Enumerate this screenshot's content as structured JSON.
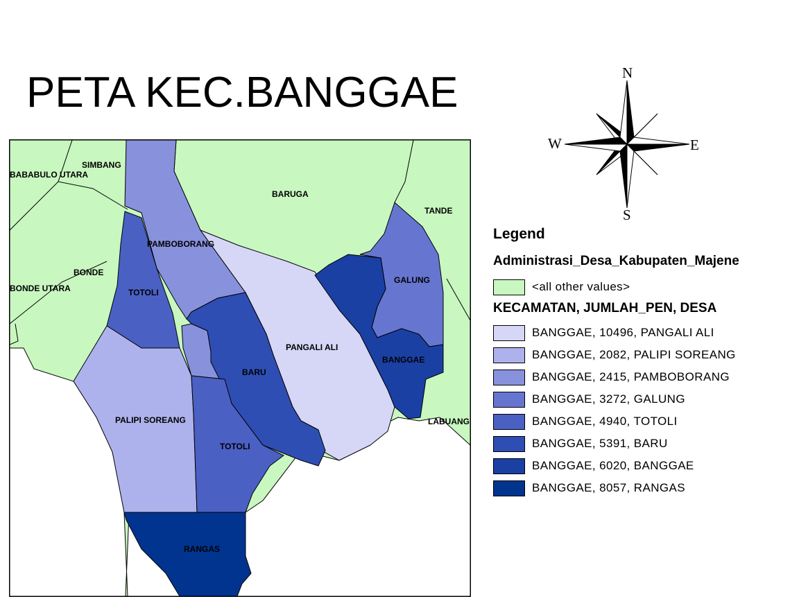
{
  "title": "PETA KEC.BANGGAE",
  "compass": {
    "n": "N",
    "s": "S",
    "e": "E",
    "w": "W"
  },
  "colors": {
    "other": "#c8f7c0",
    "pangali_ali": "#d6d6f7",
    "palipi_soreang": "#aeb2ec",
    "pamboborang": "#8891dc",
    "galung": "#6676d0",
    "totoli": "#4a60c3",
    "baru": "#2f4eb4",
    "banggae": "#1a40a4",
    "rangas": "#00348f",
    "water": "#ffffff",
    "line": "#000000"
  },
  "map_labels": {
    "bababulo_utara": "BABABULO UTARA",
    "simbang": "SIMBANG",
    "baruga": "BARUGA",
    "tande": "TANDE",
    "pamboborang": "PAMBOBORANG",
    "bonde": "BONDE",
    "bonde_utara": "BONDE UTARA",
    "totoli_north": "TOTOLI",
    "galung": "GALUNG",
    "pangali_ali": "PANGALI ALI",
    "baru": "BARU",
    "banggae": "BANGGAE",
    "palipi_soreang": "PALIPI SOREANG",
    "totoli_south": "TOTOLI",
    "labuang": "LABUANG",
    "rangas": "RANGAS"
  },
  "legend": {
    "title": "Legend",
    "layer": "Administrasi_Desa_Kabupaten_Majene",
    "other_values": "<all other values>",
    "field": "KECAMATAN, JUMLAH_PEN, DESA",
    "items": [
      {
        "label": "BANGGAE, 10496, PANGALI ALI",
        "color": "#d6d6f7"
      },
      {
        "label": "BANGGAE, 2082, PALIPI SOREANG",
        "color": "#aeb2ec"
      },
      {
        "label": "BANGGAE, 2415, PAMBOBORANG",
        "color": "#8891dc"
      },
      {
        "label": "BANGGAE, 3272, GALUNG",
        "color": "#6676d0"
      },
      {
        "label": "BANGGAE, 4940, TOTOLI",
        "color": "#4a60c3"
      },
      {
        "label": "BANGGAE, 5391, BARU",
        "color": "#2f4eb4"
      },
      {
        "label": "BANGGAE, 6020, BANGGAE",
        "color": "#1a40a4"
      },
      {
        "label": "BANGGAE, 8057, RANGAS",
        "color": "#00348f"
      }
    ]
  }
}
